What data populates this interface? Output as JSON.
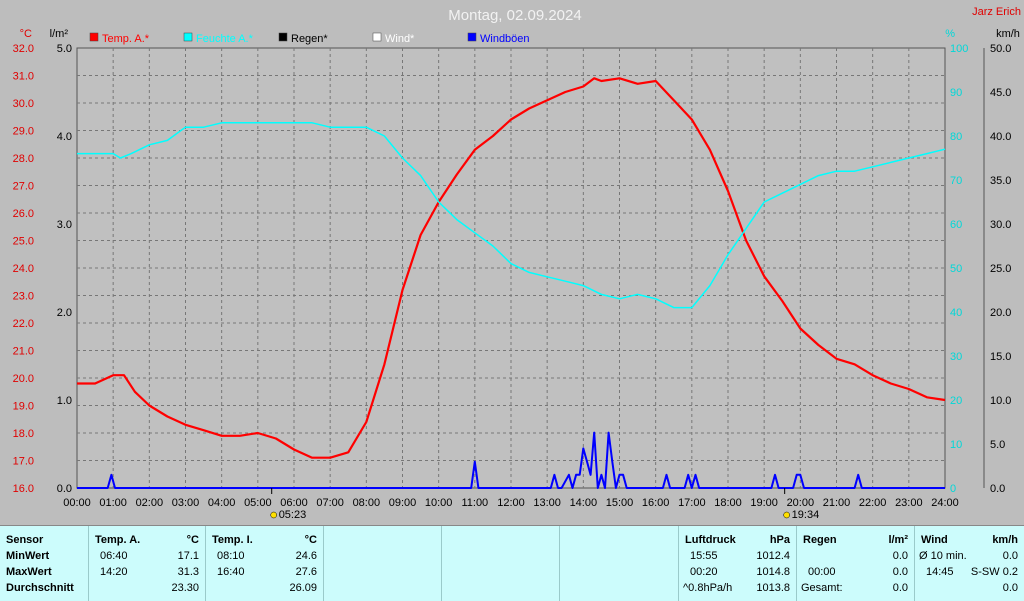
{
  "chart_data": {
    "type": "line",
    "title": "Montag, 02.09.2024",
    "watermark": "Jarz Erich",
    "axes": {
      "left_outer_unit": "°C",
      "left_outer_ticks": [
        "32.0",
        "31.0",
        "30.0",
        "29.0",
        "28.0",
        "27.0",
        "26.0",
        "25.0",
        "24.0",
        "23.0",
        "22.0",
        "21.0",
        "20.0",
        "19.0",
        "18.0",
        "17.0",
        "16.0"
      ],
      "left_inner_unit": "l/m²",
      "left_inner_ticks": [
        "5.0",
        "4.0",
        "3.0",
        "2.0",
        "1.0",
        "0.0"
      ],
      "right_inner_unit": "%",
      "right_inner_ticks": [
        "100",
        "90",
        "80",
        "70",
        "60",
        "50",
        "40",
        "30",
        "20",
        "10",
        "0"
      ],
      "right_outer_unit": "km/h",
      "right_outer_ticks": [
        "50.0",
        "45.0",
        "40.0",
        "35.0",
        "30.0",
        "25.0",
        "20.0",
        "15.0",
        "10.0",
        "5.0",
        "0.0"
      ],
      "x_ticks": [
        "00:00",
        "01:00",
        "02:00",
        "03:00",
        "04:00",
        "05:00",
        "06:00",
        "07:00",
        "08:00",
        "09:00",
        "10:00",
        "11:00",
        "12:00",
        "13:00",
        "14:00",
        "15:00",
        "16:00",
        "17:00",
        "18:00",
        "19:00",
        "20:00",
        "21:00",
        "22:00",
        "23:00",
        "24:00"
      ],
      "temp_range": [
        16,
        32
      ],
      "humidity_range": [
        0,
        100
      ],
      "wind_range": [
        0,
        50
      ],
      "grid": true
    },
    "sunrise": "05:23",
    "sunset": "19:34",
    "legend": [
      {
        "name": "Temp. A.*",
        "color": "#ff0000"
      },
      {
        "name": "Feuchte A.*",
        "color": "#00ffff"
      },
      {
        "name": "Regen*",
        "color": "#000000"
      },
      {
        "name": "Wind*",
        "color": "#ffffff"
      },
      {
        "name": "Windböen",
        "color": "#0000ff"
      }
    ],
    "series": [
      {
        "name": "Temp. A.*",
        "color": "#ff0000",
        "x": [
          0,
          0.5,
          1,
          1.3,
          1.6,
          2,
          2.5,
          3,
          3.5,
          4,
          4.5,
          5,
          5.5,
          6,
          6.5,
          7,
          7.5,
          8,
          8.5,
          9,
          9.5,
          10,
          10.5,
          11,
          11.5,
          12,
          12.5,
          13,
          13.5,
          14,
          14.3,
          14.5,
          15,
          15.5,
          16,
          16.5,
          17,
          17.5,
          18,
          18.5,
          19,
          19.5,
          20,
          20.5,
          21,
          21.5,
          22,
          22.5,
          23,
          23.5,
          24
        ],
        "y": [
          19.8,
          19.8,
          20.1,
          20.1,
          19.5,
          19.0,
          18.6,
          18.3,
          18.1,
          17.9,
          17.9,
          18.0,
          17.8,
          17.4,
          17.1,
          17.1,
          17.3,
          18.4,
          20.5,
          23.2,
          25.2,
          26.4,
          27.4,
          28.3,
          28.8,
          29.4,
          29.8,
          30.1,
          30.4,
          30.6,
          30.9,
          30.8,
          30.9,
          30.7,
          30.8,
          30.1,
          29.4,
          28.3,
          26.8,
          25.0,
          23.7,
          22.8,
          21.8,
          21.2,
          20.7,
          20.5,
          20.1,
          19.8,
          19.6,
          19.3,
          19.2
        ]
      },
      {
        "name": "Feuchte A.*",
        "color": "#00ffff",
        "x": [
          0,
          0.5,
          1,
          1.2,
          1.5,
          2,
          2.5,
          3,
          3.5,
          4,
          4.5,
          5,
          5.5,
          6,
          6.5,
          7,
          7.5,
          8,
          8.5,
          9,
          9.5,
          10,
          10.5,
          11,
          11.5,
          12,
          12.5,
          13,
          13.5,
          14,
          14.5,
          15,
          15.5,
          16,
          16.5,
          17,
          17.5,
          18,
          18.5,
          19,
          19.5,
          20,
          20.5,
          21,
          21.5,
          22,
          22.5,
          23,
          23.5,
          24
        ],
        "y": [
          76,
          76,
          76,
          75,
          76,
          78,
          79,
          82,
          82,
          83,
          83,
          83,
          83,
          83,
          83,
          82,
          82,
          82,
          80,
          75,
          71,
          65,
          61,
          58,
          55,
          51,
          49,
          48,
          47,
          46,
          44,
          43,
          44,
          43,
          41,
          41,
          46,
          53,
          59,
          65,
          67,
          69,
          71,
          72,
          72,
          73,
          74,
          75,
          76,
          77
        ]
      },
      {
        "name": "Windböen",
        "color": "#0000ff",
        "x": [
          0,
          0.85,
          0.95,
          1.05,
          10.9,
          11.0,
          11.1,
          13.1,
          13.2,
          13.3,
          13.4,
          13.6,
          13.7,
          13.8,
          13.9,
          14.0,
          14.1,
          14.2,
          14.3,
          14.4,
          14.5,
          14.6,
          14.7,
          14.8,
          14.9,
          15.0,
          15.1,
          15.2,
          15.3,
          16.2,
          16.3,
          16.4,
          16.8,
          16.9,
          17.0,
          17.1,
          17.2,
          17.3,
          19.2,
          19.3,
          19.4,
          19.8,
          19.9,
          20.0,
          20.1,
          20.2,
          21.5,
          21.6,
          21.7,
          24
        ],
        "y": [
          0,
          0,
          1.5,
          0,
          0,
          3.0,
          0,
          0,
          1.5,
          0,
          0,
          1.5,
          0,
          1.5,
          1.5,
          4.5,
          3.0,
          1.5,
          6.3,
          0,
          1.5,
          0,
          6.3,
          3.0,
          0,
          1.5,
          1.5,
          0,
          0,
          0,
          1.5,
          0,
          0,
          1.5,
          0,
          1.5,
          0,
          0,
          0,
          1.5,
          0,
          0,
          1.5,
          1.5,
          0,
          0,
          0,
          1.5,
          0,
          0
        ]
      }
    ]
  },
  "table": {
    "sensor": {
      "head": "Sensor",
      "rows": [
        "MinWert",
        "MaxWert",
        "Durchschnitt"
      ]
    },
    "temp_a": {
      "head": "Temp. A.",
      "unit": "°C",
      "times": [
        "06:40",
        "14:20",
        ""
      ],
      "values": [
        "17.1",
        "31.3",
        "23.30"
      ]
    },
    "temp_i": {
      "head": "Temp. I.",
      "unit": "°C",
      "times": [
        "08:10",
        "16:40",
        ""
      ],
      "values": [
        "24.6",
        "27.6",
        "26.09"
      ]
    },
    "luftdruck": {
      "head": "Luftdruck",
      "unit": "hPa",
      "times": [
        "15:55",
        "00:20",
        "^0.8hPa/h"
      ],
      "values": [
        "1012.4",
        "1014.8",
        "1013.8"
      ]
    },
    "regen": {
      "head": "Regen",
      "unit": "l/m²",
      "times": [
        "",
        "00:00",
        "Gesamt:"
      ],
      "values": [
        "0.0",
        "0.0",
        "0.0"
      ]
    },
    "wind": {
      "head": "Wind",
      "unit": "km/h",
      "times": [
        "Ø 10 min.",
        "14:45",
        ""
      ],
      "values": [
        "0.0",
        "S-SW 0.2",
        "0.0"
      ]
    }
  }
}
